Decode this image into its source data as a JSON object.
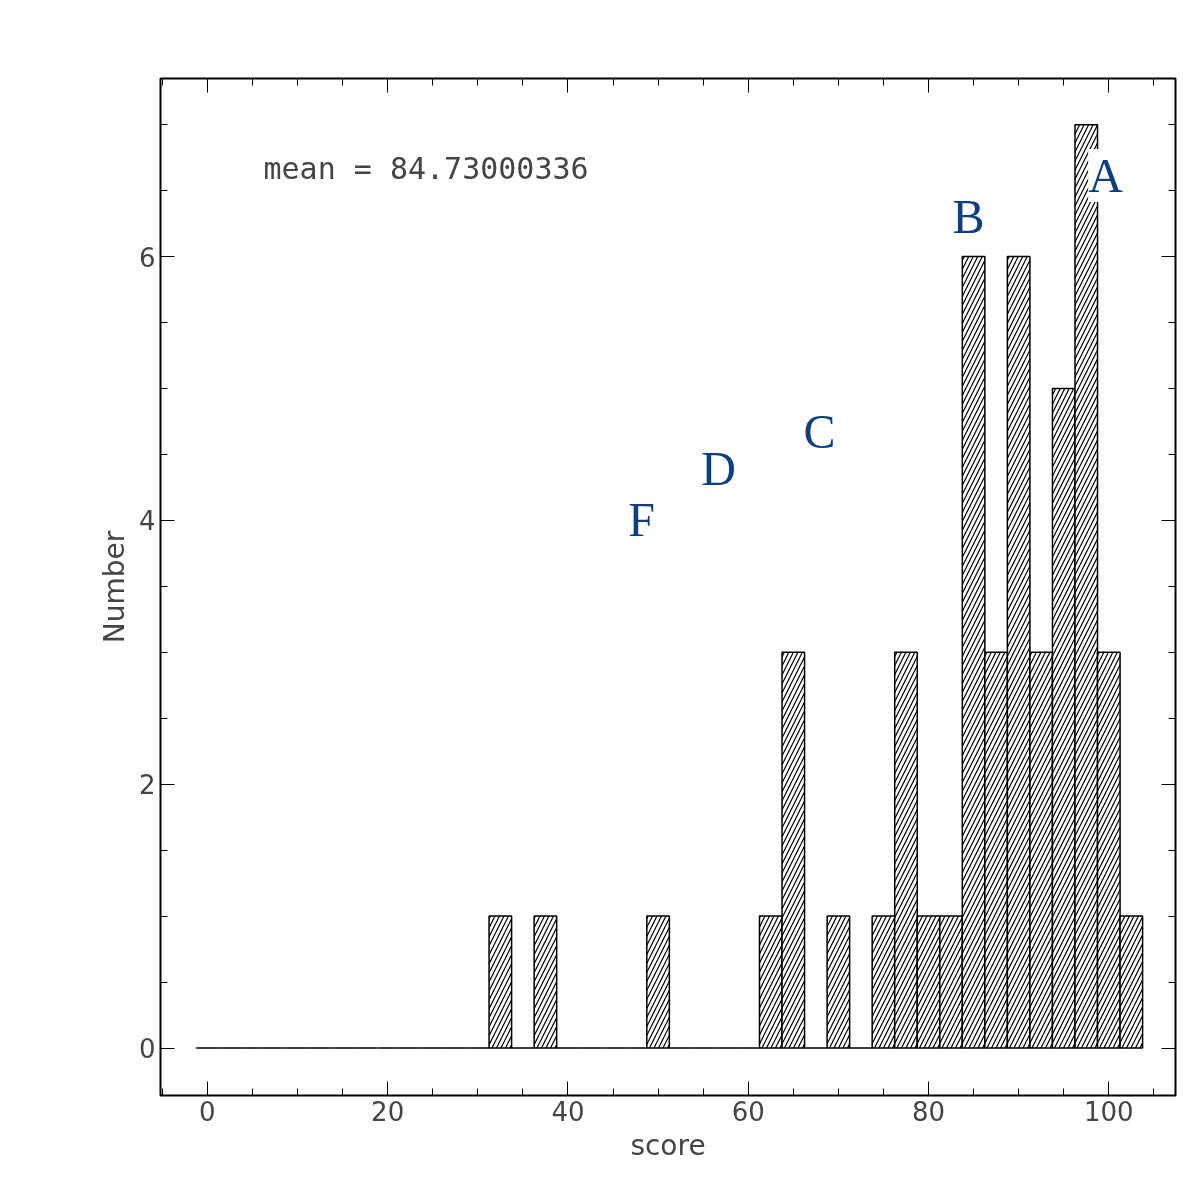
{
  "chart_data": {
    "type": "histogram",
    "xlabel": "score",
    "ylabel": "Number",
    "bins": [
      -1.25,
      1.25,
      3.75,
      6.25,
      8.75,
      11.25,
      13.75,
      16.25,
      18.75,
      21.25,
      23.75,
      26.25,
      28.75,
      31.25,
      33.75,
      36.25,
      38.75,
      41.25,
      43.75,
      46.25,
      48.75,
      51.25,
      53.75,
      56.25,
      58.75,
      61.25,
      63.75,
      66.25,
      68.75,
      71.25,
      73.75,
      76.25,
      78.75,
      81.25,
      83.75,
      86.25,
      88.75,
      91.25,
      93.75,
      96.25,
      98.75,
      101.25,
      103.75
    ],
    "values": [
      0,
      0,
      0,
      0,
      0,
      0,
      0,
      0,
      0,
      0,
      0,
      0,
      0,
      1,
      0,
      1,
      0,
      0,
      0,
      0,
      1,
      0,
      0,
      0,
      0,
      1,
      3,
      0,
      1,
      0,
      1,
      3,
      1,
      1,
      6,
      3,
      6,
      3,
      5,
      7,
      3,
      1
    ],
    "color": "#000000",
    "xlim": [
      -5.2,
      107.4
    ],
    "ylim": [
      -0.36,
      7.35
    ],
    "xticks": [
      0,
      20,
      40,
      60,
      80,
      100
    ],
    "yticks": [
      0,
      2,
      4,
      6
    ],
    "annotations": [
      "mean = 84.73000336",
      "A",
      "B",
      "C",
      "D",
      "F"
    ],
    "grid": false
  }
}
